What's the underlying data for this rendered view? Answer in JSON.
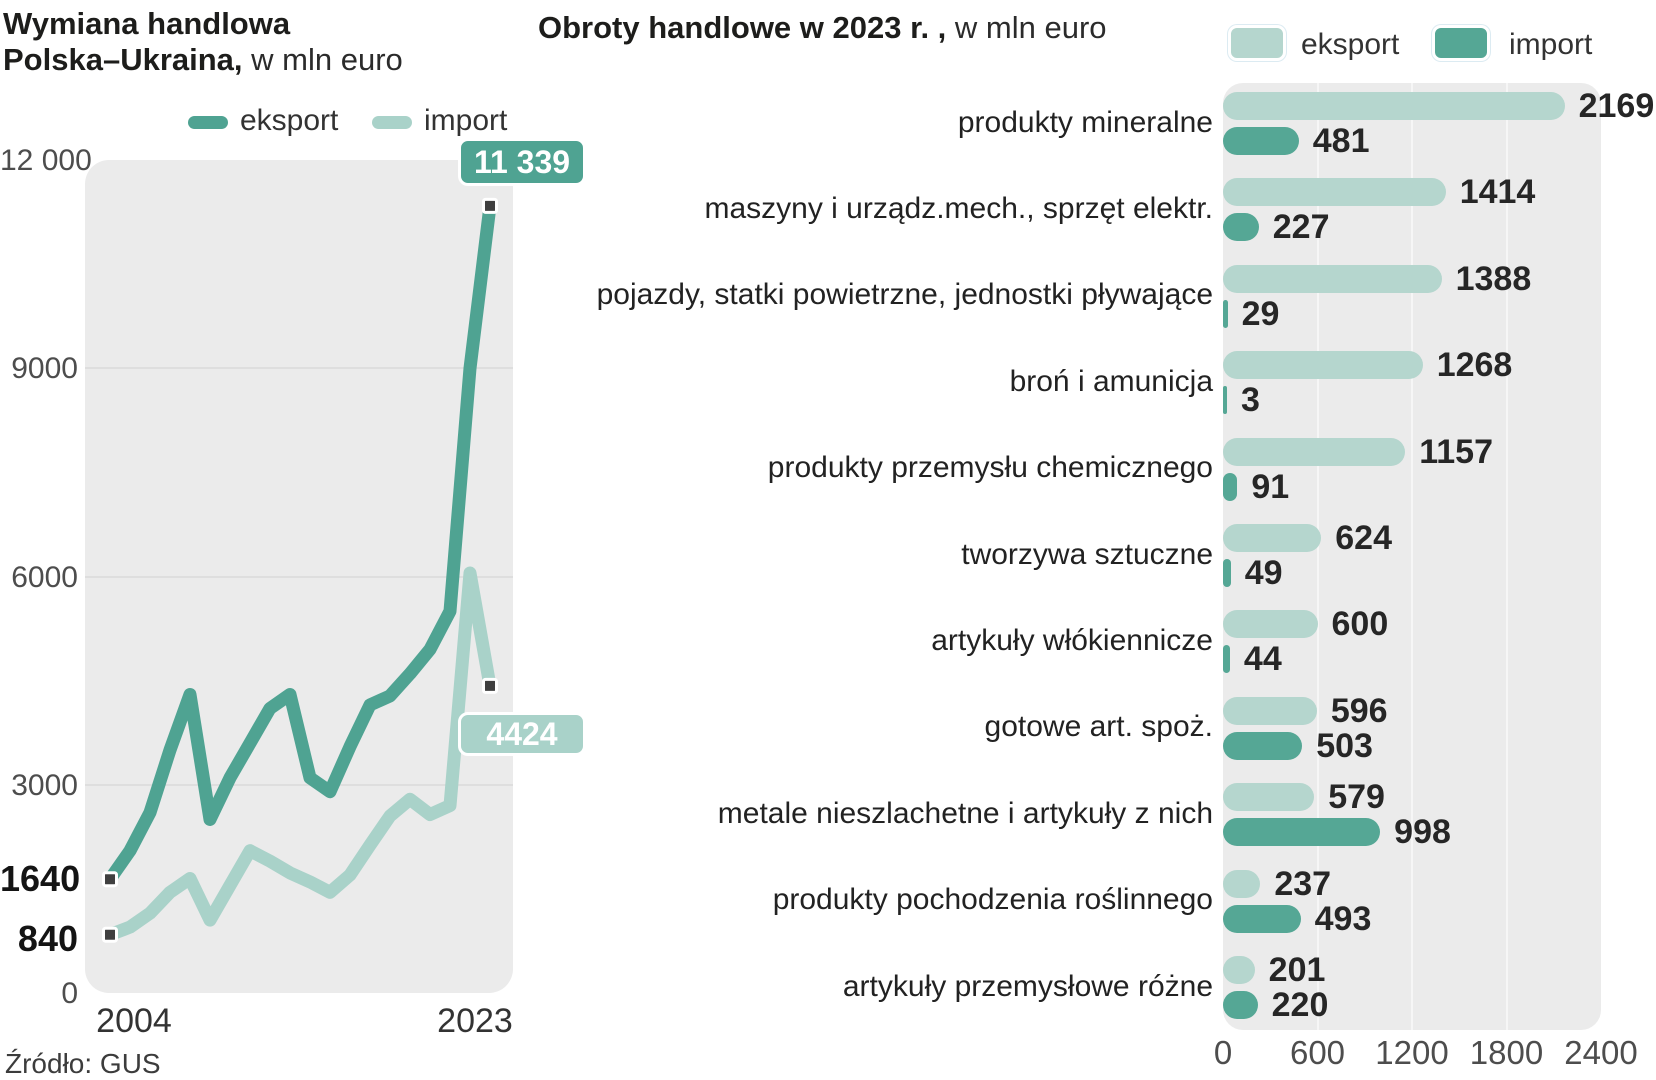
{
  "source": "Źródło: GUS",
  "line_chart": {
    "title_bold_line1": "Wymiana handlowa",
    "title_bold_line2": "Polska–Ukraina,",
    "title_regular": " w mln euro",
    "legend": [
      {
        "label": "eksport",
        "color": "#4fa392"
      },
      {
        "label": "import",
        "color": "#a9d2c9"
      }
    ],
    "start_labels": {
      "eksport": "1640",
      "import": "840"
    },
    "end_badges": {
      "eksport": "11 339",
      "import": "4424"
    }
  },
  "bar_chart": {
    "title_bold": "Obroty handlowe w 2023 r. ,",
    "title_regular": " w mln euro",
    "legend": [
      {
        "label": "eksport",
        "color": "#b5d6ce"
      },
      {
        "label": "import",
        "color": "#55a795"
      }
    ]
  },
  "colors": {
    "eksport_line": "#4fa392",
    "import_line": "#a9d2c9",
    "eksport_bar": "#b5d6ce",
    "import_bar": "#55a795",
    "plot_background": "#ebebeb",
    "marker": "#3f3f3f"
  },
  "chart_data": [
    {
      "type": "line",
      "title": "Wymiana handlowa Polska–Ukraina, w mln euro",
      "x": [
        2004,
        2005,
        2006,
        2007,
        2008,
        2009,
        2010,
        2011,
        2012,
        2013,
        2014,
        2015,
        2016,
        2017,
        2018,
        2019,
        2020,
        2021,
        2022,
        2023
      ],
      "series": [
        {
          "name": "eksport",
          "color": "#4fa392",
          "values": [
            1640,
            2050,
            2600,
            3500,
            4300,
            2500,
            3100,
            3600,
            4100,
            4300,
            3100,
            2900,
            3550,
            4150,
            4280,
            4600,
            4950,
            5500,
            9000,
            11339
          ]
        },
        {
          "name": "import",
          "color": "#a9d2c9",
          "values": [
            840,
            950,
            1150,
            1450,
            1650,
            1050,
            1550,
            2050,
            1900,
            1730,
            1600,
            1450,
            1700,
            2130,
            2550,
            2790,
            2570,
            2700,
            6050,
            4424
          ]
        }
      ],
      "ylim": [
        0,
        12000
      ],
      "yticks": [
        0,
        3000,
        6000,
        9000,
        12000
      ],
      "ytick_labels": [
        "0",
        "3000",
        "6000",
        "9000",
        "12 000"
      ],
      "xtick_labels": [
        "2004",
        "2023"
      ],
      "grid": "horizontal",
      "legend_position": "top",
      "annotations": {
        "eksport_2004": "1640",
        "import_2004": "840",
        "eksport_2023": "11 339",
        "import_2023": "4424"
      }
    },
    {
      "type": "bar",
      "orientation": "horizontal",
      "title": "Obroty handlowe w 2023 r., w mln euro",
      "categories": [
        "produkty mineralne",
        "maszyny i urządz.mech., sprzęt elektr.",
        "pojazdy, statki powietrzne, jednostki pływające",
        "broń i amunicja",
        "produkty przemysłu chemicznego",
        "tworzywa sztuczne",
        "artykuły włókiennicze",
        "gotowe art. spoż.",
        "metale nieszlachetne i artykuły z nich",
        "produkty pochodzenia roślinnego",
        "artykuły przemysłowe różne"
      ],
      "series": [
        {
          "name": "eksport",
          "color": "#b5d6ce",
          "values": [
            2169,
            1414,
            1388,
            1268,
            1157,
            624,
            600,
            596,
            579,
            237,
            201
          ]
        },
        {
          "name": "import",
          "color": "#55a795",
          "values": [
            481,
            227,
            29,
            3,
            91,
            49,
            44,
            503,
            998,
            493,
            220
          ]
        }
      ],
      "xlim": [
        0,
        2400
      ],
      "xticks": [
        0,
        600,
        1200,
        1800,
        2400
      ],
      "xtick_labels": [
        "0",
        "600",
        "1200",
        "1800",
        "2400"
      ],
      "grid": "vertical",
      "legend_position": "top"
    }
  ]
}
